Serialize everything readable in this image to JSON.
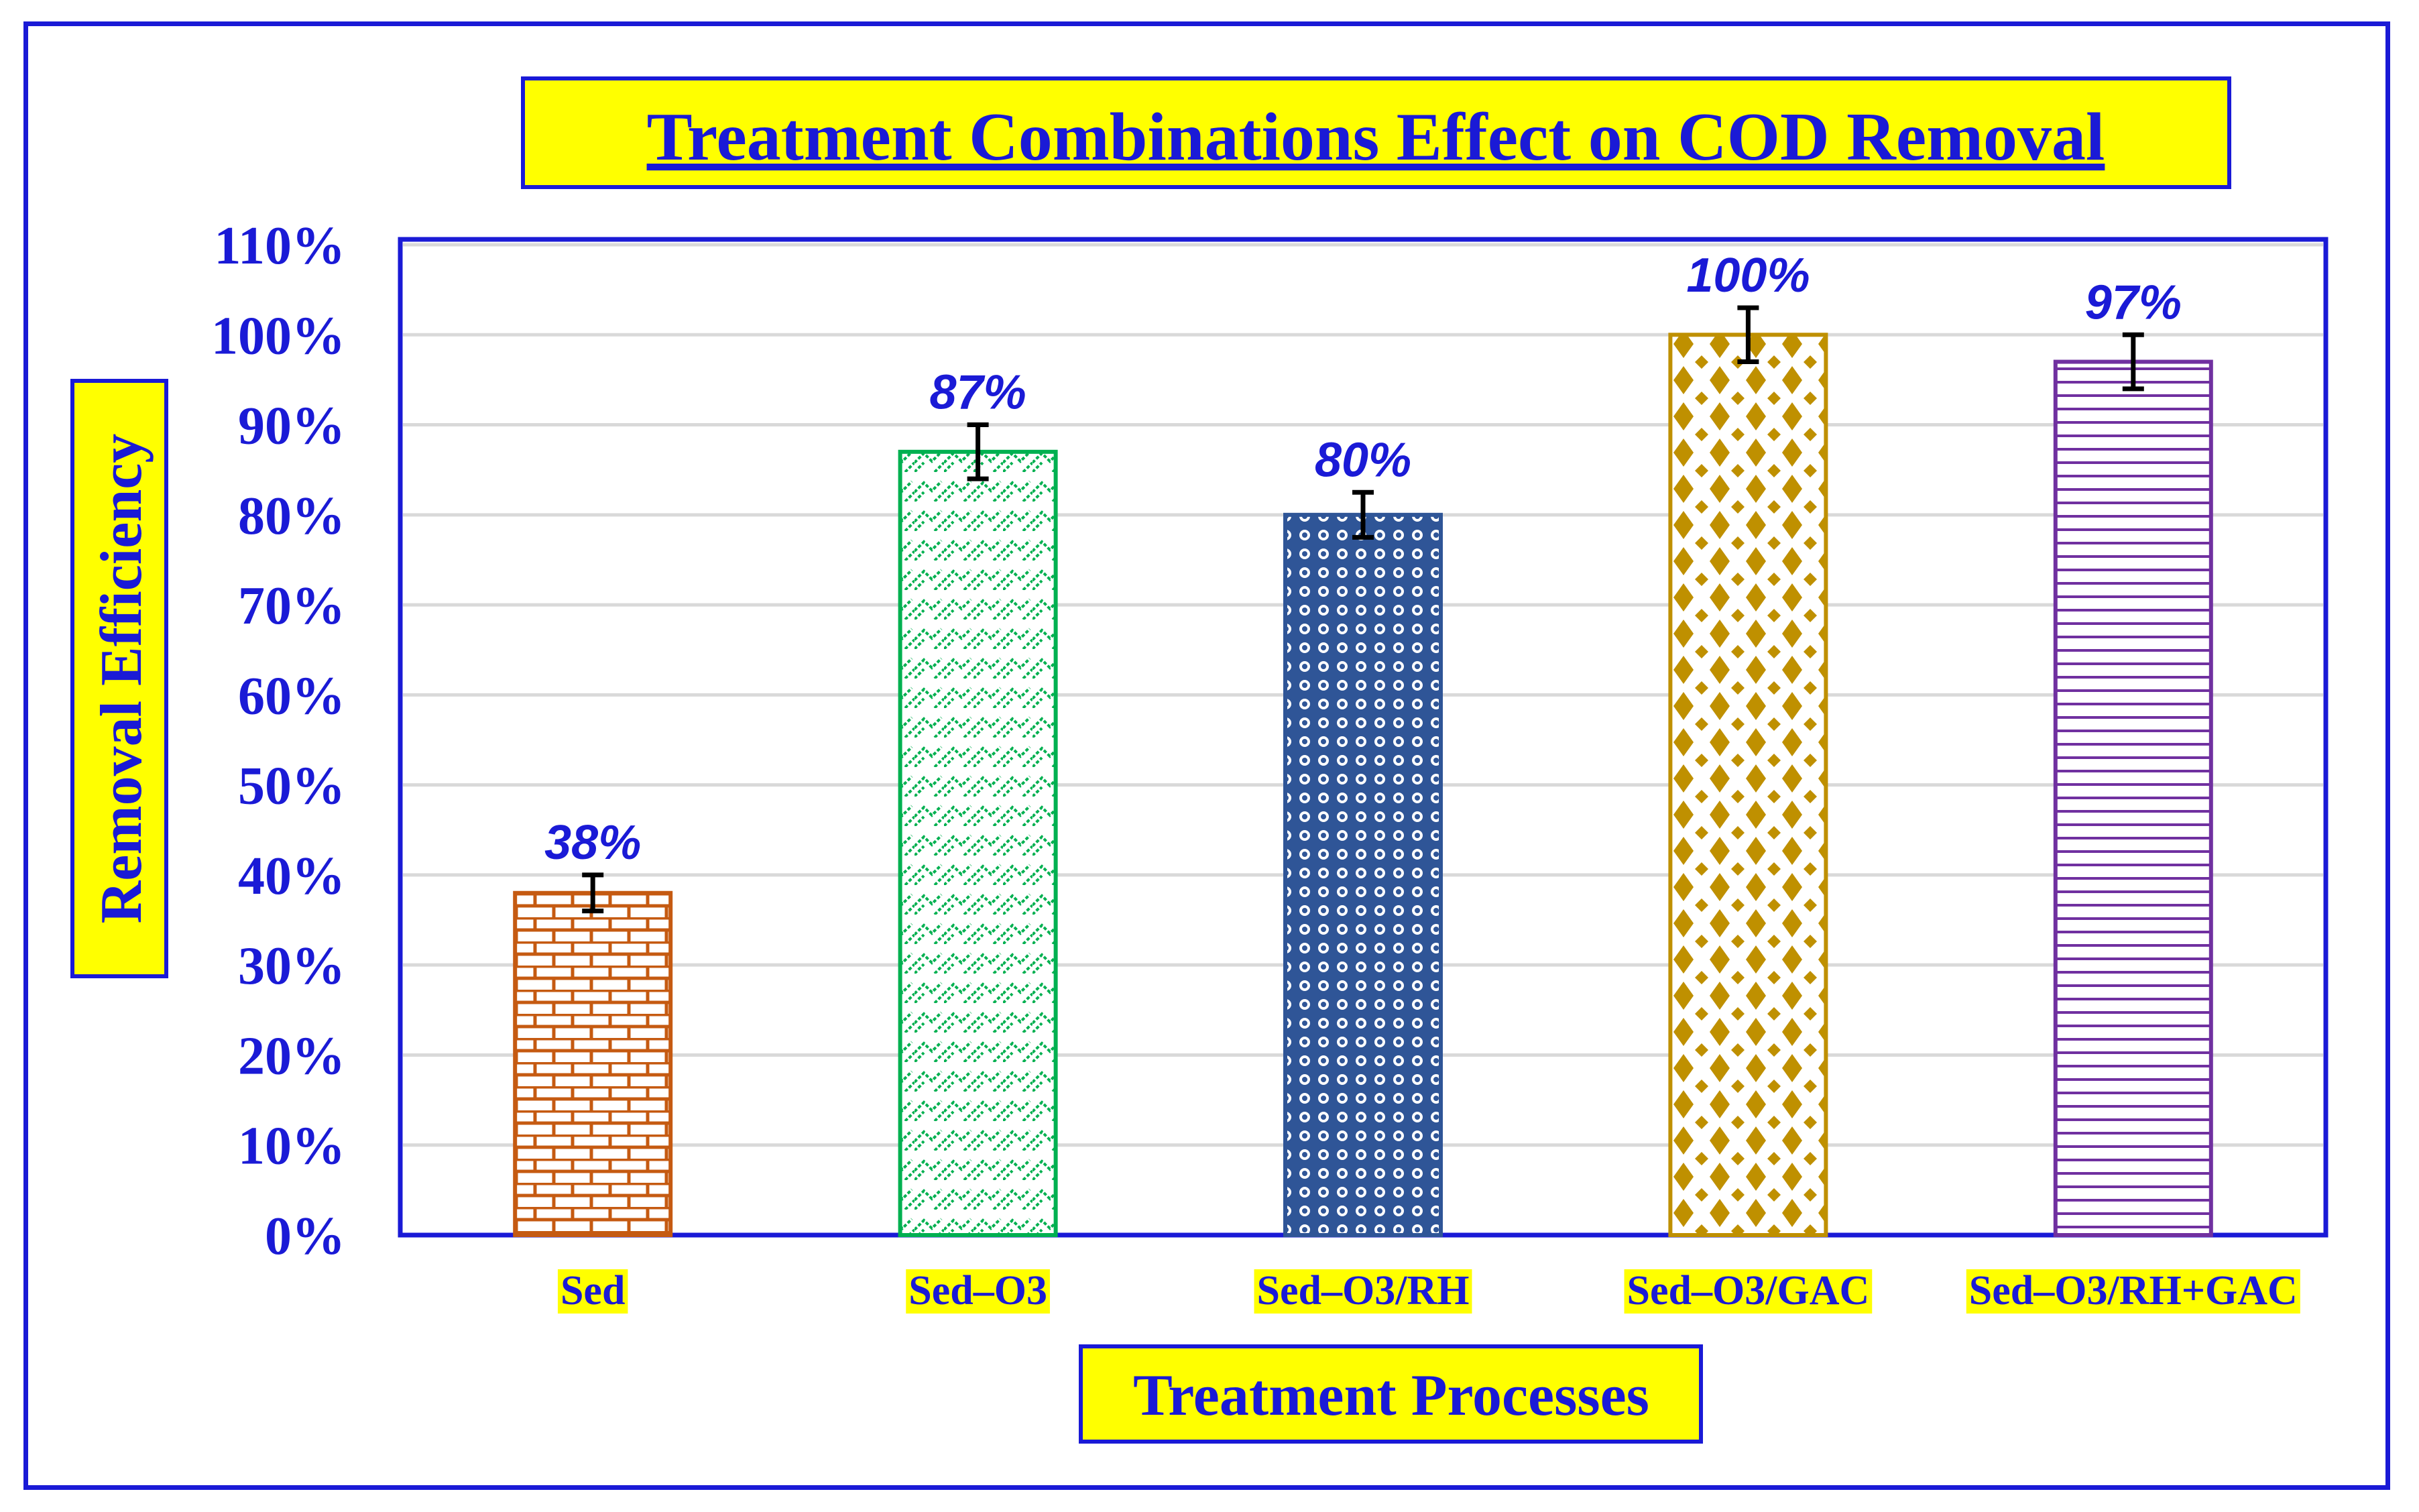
{
  "chart_data": {
    "type": "bar",
    "title": "Treatment Combinations Effect on COD Removal",
    "xlabel": "Treatment Processes",
    "ylabel": "Removal Efficiency",
    "categories": [
      "Sed",
      "Sed–O3",
      "Sed–O3/RH",
      "Sed–O3/GAC",
      "Sed–O3/RH+GAC"
    ],
    "values": [
      38,
      87,
      80,
      100,
      97
    ],
    "data_labels": [
      "38%",
      "87%",
      "80%",
      "100%",
      "97%"
    ],
    "error": [
      2,
      3,
      2.5,
      3,
      3
    ],
    "ylim": [
      0,
      110
    ],
    "ytick_values": [
      0,
      10,
      20,
      30,
      40,
      50,
      60,
      70,
      80,
      90,
      100,
      110
    ],
    "ytick_labels": [
      "0%",
      "10%",
      "20%",
      "30%",
      "40%",
      "50%",
      "60%",
      "70%",
      "80%",
      "90%",
      "100%",
      "110%"
    ],
    "grid": true,
    "bar_patterns": [
      "brick",
      "zigzag",
      "dots",
      "diamonds",
      "horizontal-lines"
    ],
    "bar_colors": [
      "#c55a11",
      "#00b050",
      "#2f5597",
      "#bf9000",
      "#7030a0"
    ],
    "accent_color": "#1a1ad6",
    "highlight_color": "#ffff00",
    "grid_color": "#d9d9d9"
  }
}
